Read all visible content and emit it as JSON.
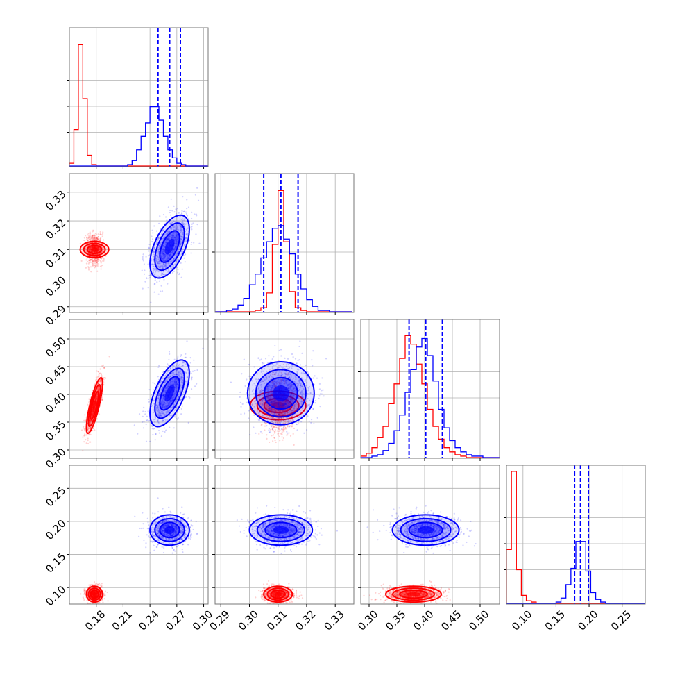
{
  "chart_data": {
    "type": "corner",
    "title": "",
    "parameters": [
      "",
      "",
      "",
      ""
    ],
    "grid": true,
    "legend": "none",
    "colors": {
      "red": "#ff0000",
      "blue": "#0000ff"
    },
    "series": [
      {
        "color": "#ff0000",
        "means": [
          0.178,
          0.31,
          0.38,
          0.09
        ],
        "sds": [
          0.0045,
          0.0025,
          0.025,
          0.006
        ],
        "correlations": {
          "0-2": 0.8
        }
      },
      {
        "color": "#0000ff",
        "means": [
          0.262,
          0.311,
          0.402,
          0.187
        ],
        "sds": [
          0.011,
          0.0055,
          0.03,
          0.0115
        ],
        "correlations": {
          "0-1": 0.55,
          "0-2": 0.6
        }
      }
    ],
    "quantiles": {
      "series_color": "#0000ff",
      "values": [
        [
          0.249,
          0.262,
          0.274
        ],
        [
          0.305,
          0.311,
          0.317
        ],
        [
          0.372,
          0.402,
          0.432
        ],
        [
          0.178,
          0.187,
          0.199
        ]
      ]
    },
    "axes": [
      {
        "range": [
          0.15,
          0.305
        ],
        "ticks": [
          "0.18",
          "0.21",
          "0.24",
          "0.27",
          "0.30"
        ]
      },
      {
        "range": [
          0.288,
          0.3365
        ],
        "ticks": [
          "0.29",
          "0.30",
          "0.31",
          "0.32",
          "0.33"
        ]
      },
      {
        "range": [
          0.285,
          0.535
        ],
        "ticks": [
          "0.30",
          "0.35",
          "0.40",
          "0.45",
          "0.50"
        ]
      },
      {
        "range": [
          0.075,
          0.285
        ],
        "ticks": [
          "0.10",
          "0.15",
          "0.20",
          "0.25"
        ]
      }
    ],
    "histograms": [
      {
        "bins": [
          0.15,
          0.155,
          0.16,
          0.165,
          0.17,
          0.175,
          0.18,
          0.185,
          0.19,
          0.195,
          0.2,
          0.205,
          0.21,
          0.215,
          0.22,
          0.225,
          0.23,
          0.235,
          0.24,
          0.245,
          0.25,
          0.255,
          0.26,
          0.265,
          0.27,
          0.275,
          0.28,
          0.285,
          0.29,
          0.295,
          0.3,
          0.305
        ],
        "ylim": [
          0,
          100
        ],
        "red": [
          2,
          27,
          90,
          50,
          8,
          1,
          0,
          0,
          0,
          0,
          0,
          0,
          0,
          0,
          0,
          0,
          0,
          0,
          0,
          0,
          0,
          0,
          0,
          0,
          0,
          0,
          0,
          0,
          0,
          0,
          0
        ],
        "blue": [
          0,
          0,
          0,
          0,
          0,
          0,
          0,
          0,
          0,
          0,
          0,
          0,
          0,
          1,
          4,
          12,
          22,
          32,
          44,
          44,
          34,
          22,
          12,
          6,
          2,
          1,
          0,
          0,
          0,
          0,
          0
        ]
      },
      {
        "bins": [
          0.288,
          0.29,
          0.292,
          0.294,
          0.296,
          0.298,
          0.3,
          0.302,
          0.304,
          0.306,
          0.308,
          0.31,
          0.312,
          0.314,
          0.316,
          0.318,
          0.32,
          0.322,
          0.324,
          0.326,
          0.328,
          0.33,
          0.332,
          0.334,
          0.336
        ],
        "ylim": [
          0,
          100
        ],
        "red": [
          0,
          0,
          0,
          0,
          0,
          0,
          0,
          1,
          3,
          14,
          50,
          90,
          52,
          15,
          3,
          1,
          0,
          0,
          0,
          0,
          0,
          0,
          0,
          0
        ],
        "blue": [
          0,
          0,
          1,
          2,
          5,
          10,
          20,
          28,
          40,
          52,
          62,
          64,
          54,
          43,
          28,
          17,
          9,
          4,
          1,
          1,
          0,
          0,
          0,
          0
        ]
      },
      {
        "bins": [
          0.285,
          0.295,
          0.305,
          0.315,
          0.325,
          0.335,
          0.345,
          0.355,
          0.365,
          0.375,
          0.385,
          0.395,
          0.405,
          0.415,
          0.425,
          0.435,
          0.445,
          0.455,
          0.465,
          0.475,
          0.485,
          0.495,
          0.505,
          0.515,
          0.525,
          0.535
        ],
        "ylim": [
          0,
          95
        ],
        "red": [
          1,
          3,
          7,
          14,
          22,
          38,
          52,
          70,
          86,
          80,
          66,
          52,
          34,
          22,
          13,
          7,
          4,
          2,
          1,
          0,
          0,
          0,
          0,
          0,
          0
        ],
        "blue": [
          0,
          0,
          1,
          2,
          5,
          10,
          19,
          30,
          46,
          62,
          78,
          84,
          72,
          54,
          34,
          21,
          12,
          7,
          4,
          2,
          1,
          1,
          0,
          0,
          0
        ]
      },
      {
        "bins": [
          0.075,
          0.0825,
          0.09,
          0.0975,
          0.105,
          0.1125,
          0.12,
          0.1275,
          0.135,
          0.1425,
          0.15,
          0.1575,
          0.165,
          0.1725,
          0.18,
          0.1875,
          0.195,
          0.2025,
          0.21,
          0.2175,
          0.225,
          0.2325,
          0.24,
          0.2475,
          0.255,
          0.2625,
          0.27,
          0.2775,
          0.285
        ],
        "ylim": [
          0,
          100
        ],
        "red": [
          40,
          98,
          25,
          6,
          2,
          1,
          0,
          0,
          0,
          0,
          0,
          0,
          0,
          0,
          0,
          0,
          0,
          0,
          0,
          0,
          0,
          0,
          0,
          0,
          0,
          0,
          0,
          0
        ],
        "blue": [
          0,
          0,
          0,
          0,
          0,
          0,
          0,
          0,
          0,
          0,
          1,
          4,
          14,
          26,
          46,
          46,
          24,
          8,
          3,
          1,
          0,
          0,
          0,
          0,
          0,
          0,
          0,
          0
        ]
      }
    ]
  }
}
